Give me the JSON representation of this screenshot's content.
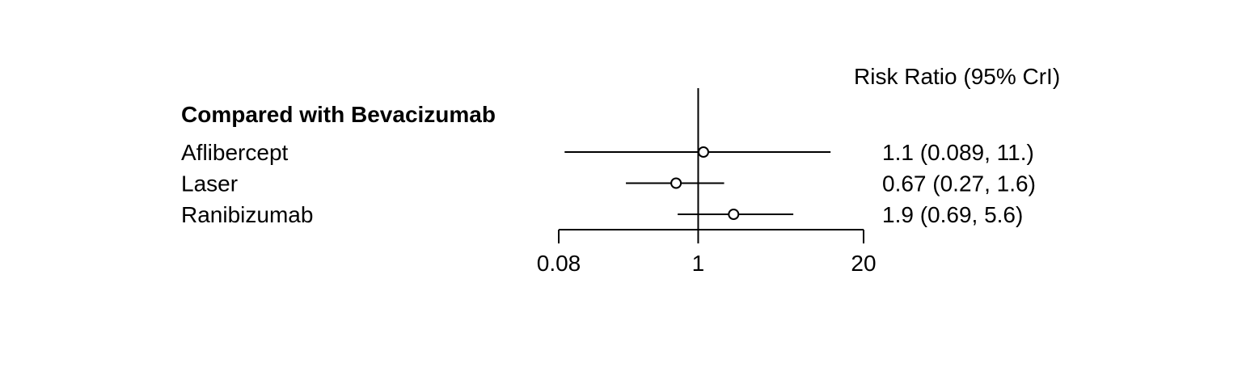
{
  "chart_data": {
    "type": "forest",
    "column_header": "Risk Ratio (95% CrI)",
    "group_heading": "Compared with Bevacizumab",
    "x_scale": "log",
    "xlim": [
      0.08,
      20
    ],
    "reference_line": 1,
    "x_ticks": [
      0.08,
      1,
      20
    ],
    "x_tick_labels": [
      "0.08",
      "1",
      "20"
    ],
    "grid": false,
    "rows": [
      {
        "label": "Aflibercept",
        "estimate": 1.1,
        "lower": 0.089,
        "upper": 11.0,
        "text": "1.1 (0.089, 11.)"
      },
      {
        "label": "Laser",
        "estimate": 0.67,
        "lower": 0.27,
        "upper": 1.6,
        "text": "0.67 (0.27, 1.6)"
      },
      {
        "label": "Ranibizumab",
        "estimate": 1.9,
        "lower": 0.69,
        "upper": 5.6,
        "text": "1.9 (0.69, 5.6)"
      }
    ]
  }
}
